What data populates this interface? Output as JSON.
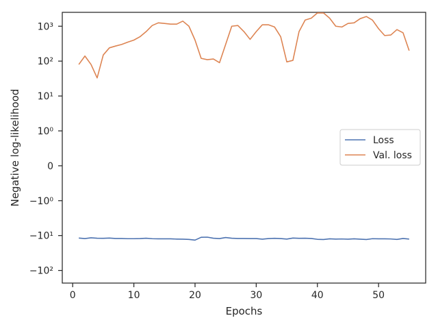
{
  "chart_data": {
    "type": "line",
    "title": "",
    "xlabel": "Epochs",
    "ylabel": "Negative log-likelihood",
    "yscale": "symlog",
    "xlim": [
      -1.7,
      57.7
    ],
    "ylim": [
      -230,
      2500
    ],
    "grid": false,
    "legend_position": "center-right",
    "x_ticks": [
      0,
      10,
      20,
      30,
      40,
      50
    ],
    "x_tick_labels": [
      "0",
      "10",
      "20",
      "30",
      "40",
      "50"
    ],
    "y_ticks": [
      -100,
      -10,
      -1,
      0,
      1,
      10,
      100,
      1000
    ],
    "y_tick_labels": [
      "−10²",
      "−10¹",
      "−10⁰",
      "0",
      "10⁰",
      "10¹",
      "10²",
      "10³"
    ],
    "x": [
      1,
      2,
      3,
      4,
      5,
      6,
      7,
      8,
      9,
      10,
      11,
      12,
      13,
      14,
      15,
      16,
      17,
      18,
      19,
      20,
      21,
      22,
      23,
      24,
      25,
      26,
      27,
      28,
      29,
      30,
      31,
      32,
      33,
      34,
      35,
      36,
      37,
      38,
      39,
      40,
      41,
      42,
      43,
      44,
      45,
      46,
      47,
      48,
      49,
      50,
      51,
      52,
      53,
      54,
      55
    ],
    "series": [
      {
        "name": "Loss",
        "color": "#4c72b0",
        "values": [
          -11.8,
          -12.2,
          -11.6,
          -11.9,
          -12.0,
          -11.8,
          -12.1,
          -12.1,
          -12.3,
          -12.3,
          -12.2,
          -11.9,
          -12.3,
          -12.4,
          -12.4,
          -12.4,
          -12.6,
          -12.7,
          -12.9,
          -13.5,
          -11.2,
          -11.1,
          -11.9,
          -12.2,
          -11.4,
          -11.9,
          -12.1,
          -12.1,
          -12.2,
          -12.2,
          -12.7,
          -12.2,
          -12.0,
          -12.2,
          -12.6,
          -11.8,
          -12.0,
          -11.9,
          -12.1,
          -12.8,
          -13.0,
          -12.4,
          -12.6,
          -12.5,
          -12.7,
          -12.4,
          -12.7,
          -13.0,
          -12.3,
          -12.4,
          -12.4,
          -12.5,
          -12.9,
          -12.1,
          -12.6
        ]
      },
      {
        "name": "Val. loss",
        "color": "#dd8452",
        "values": [
          80,
          140,
          80,
          33,
          150,
          240,
          270,
          300,
          350,
          400,
          500,
          700,
          1050,
          1250,
          1200,
          1150,
          1150,
          1400,
          1000,
          400,
          120,
          110,
          115,
          90,
          300,
          1000,
          1050,
          700,
          420,
          700,
          1100,
          1100,
          950,
          500,
          95,
          105,
          700,
          1500,
          1700,
          2400,
          2400,
          1700,
          1000,
          950,
          1200,
          1250,
          1650,
          1900,
          1500,
          850,
          540,
          560,
          800,
          650,
          200
        ]
      }
    ]
  }
}
